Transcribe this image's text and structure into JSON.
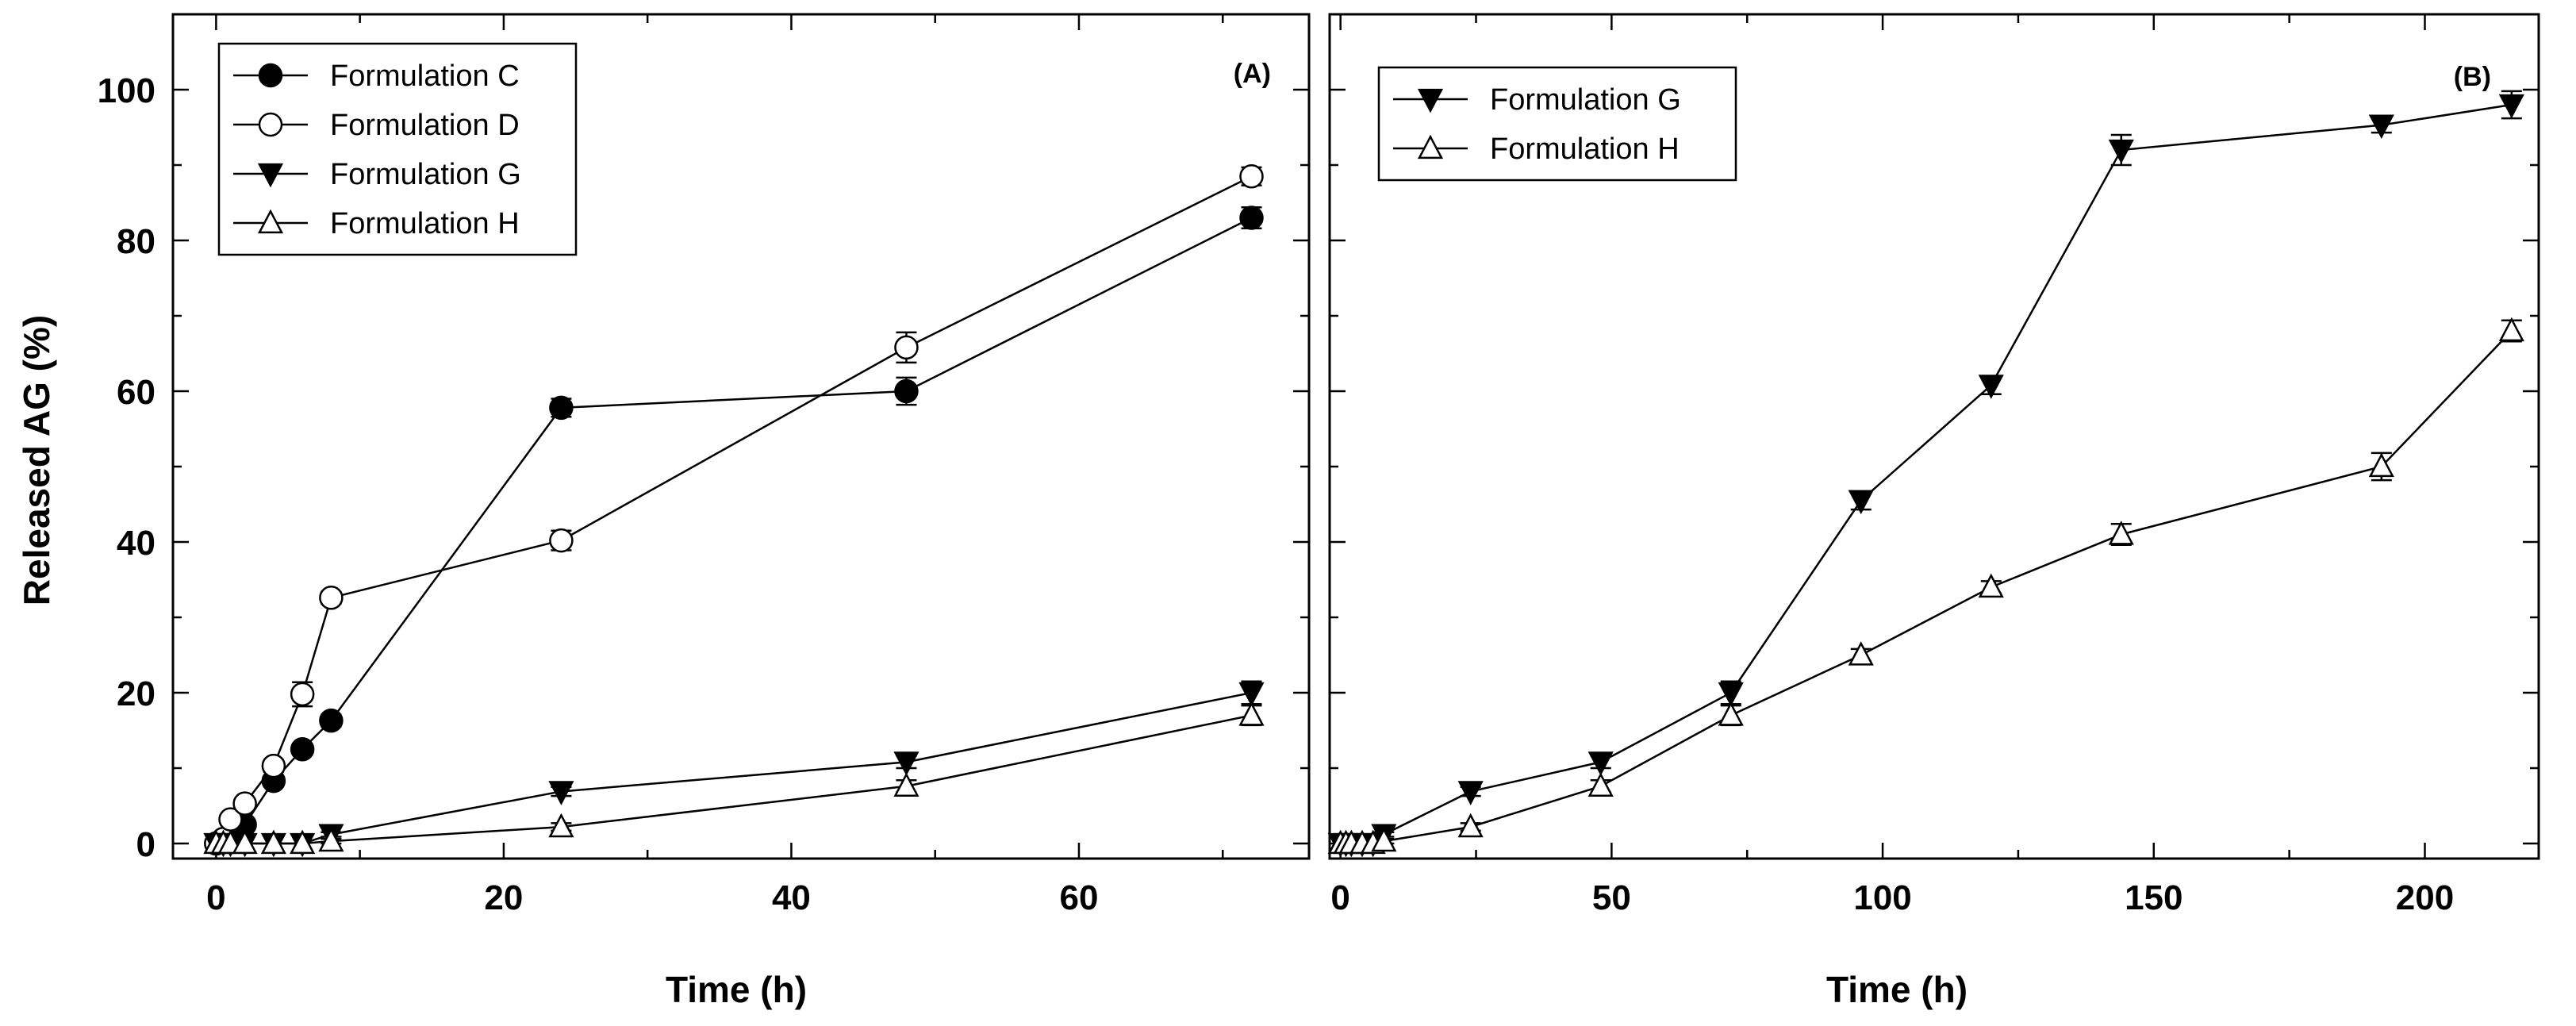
{
  "chart_data": [
    {
      "type": "line",
      "panel_label": "(A)",
      "xlabel": "Time (h)",
      "ylabel": "Released AG (%)",
      "xlim": [
        -3,
        76
      ],
      "ylim": [
        -2,
        110
      ],
      "xticks": [
        0,
        20,
        40,
        60
      ],
      "xtick_labels": [
        "0",
        "20",
        "40",
        "60"
      ],
      "yticks": [
        0,
        20,
        40,
        60,
        80,
        100
      ],
      "ytick_labels": [
        "0",
        "20",
        "40",
        "60",
        "80",
        "100"
      ],
      "grid": false,
      "legend_position": "top-left",
      "series": [
        {
          "name": "Formulation C",
          "marker": "circle-filled",
          "x": [
            0,
            0.5,
            1,
            2,
            4,
            6,
            8,
            24,
            48,
            72
          ],
          "y": [
            0,
            0.3,
            0.8,
            2.5,
            8.3,
            12.5,
            16.3,
            57.8,
            60,
            83
          ],
          "err": [
            0.2,
            0.2,
            0.3,
            0.4,
            0.6,
            0.7,
            0.8,
            1.2,
            1.8,
            1.4
          ]
        },
        {
          "name": "Formulation D",
          "marker": "circle-open",
          "x": [
            0,
            0.5,
            1,
            2,
            4,
            6,
            8,
            24,
            48,
            72
          ],
          "y": [
            0,
            0.6,
            3.2,
            5.3,
            10.3,
            19.8,
            32.6,
            40.2,
            65.8,
            88.5
          ],
          "err": [
            0.2,
            0.2,
            0.4,
            0.5,
            0.8,
            1.6,
            0.8,
            1.3,
            2.0,
            1.2
          ]
        },
        {
          "name": "Formulation G",
          "marker": "triangle-down-filled",
          "x": [
            0,
            0.5,
            1,
            2,
            4,
            6,
            8,
            24,
            48,
            72
          ],
          "y": [
            0,
            0,
            0,
            0,
            0,
            0,
            1.2,
            6.9,
            10.8,
            20
          ],
          "err": [
            0.1,
            0.1,
            0.1,
            0.1,
            0.1,
            0.1,
            0.3,
            0.6,
            0.8,
            1.5
          ]
        },
        {
          "name": "Formulation H",
          "marker": "triangle-up-open",
          "x": [
            0,
            0.5,
            1,
            2,
            4,
            6,
            8,
            24,
            48,
            72
          ],
          "y": [
            0,
            0,
            0,
            0,
            0,
            0,
            0.3,
            2.2,
            7.6,
            17
          ],
          "err": [
            0.1,
            0.1,
            0.1,
            0.1,
            0.1,
            0.1,
            0.3,
            0.5,
            0.8,
            1.3
          ]
        }
      ]
    },
    {
      "type": "line",
      "panel_label": "(B)",
      "xlabel": "Time (h)",
      "ylabel": "",
      "xlim": [
        -2,
        221
      ],
      "ylim": [
        -2,
        110
      ],
      "xticks": [
        0,
        50,
        100,
        150,
        200
      ],
      "xtick_labels": [
        "0",
        "50",
        "100",
        "150",
        "200"
      ],
      "yticks": [
        0,
        20,
        40,
        60,
        80,
        100
      ],
      "ytick_labels": [],
      "grid": false,
      "legend_position": "top-left",
      "series": [
        {
          "name": "Formulation G",
          "marker": "triangle-down-filled",
          "x": [
            0,
            1,
            2,
            4,
            6,
            8,
            24,
            48,
            72,
            96,
            120,
            144,
            192,
            216
          ],
          "y": [
            0,
            0,
            0,
            0,
            0,
            1.2,
            6.9,
            10.8,
            20,
            45.5,
            60.8,
            92,
            95.3,
            98
          ],
          "err": [
            0.1,
            0.1,
            0.1,
            0.1,
            0.1,
            0.3,
            0.6,
            0.8,
            1.5,
            1.2,
            1.2,
            2.0,
            1.0,
            1.8
          ]
        },
        {
          "name": "Formulation H",
          "marker": "triangle-up-open",
          "x": [
            0,
            1,
            2,
            4,
            6,
            8,
            24,
            48,
            72,
            96,
            120,
            144,
            192,
            216
          ],
          "y": [
            0,
            0,
            0,
            0,
            0,
            0.3,
            2.2,
            7.6,
            17,
            25,
            34,
            41,
            50,
            68
          ],
          "err": [
            0.1,
            0.1,
            0.1,
            0.1,
            0.1,
            0.3,
            0.5,
            0.8,
            1.3,
            0.8,
            0.8,
            1.4,
            1.8,
            1.4
          ]
        }
      ]
    }
  ]
}
